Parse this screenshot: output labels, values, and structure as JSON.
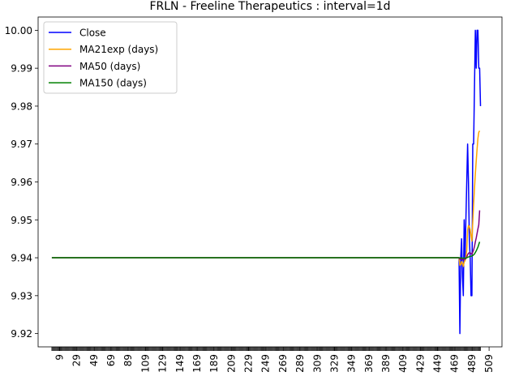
{
  "chart_data": {
    "type": "line",
    "title": "FRLN - Freeline Therapeutics : interval=1d",
    "xlabel": "",
    "ylabel": "",
    "xlim": [
      -16,
      524
    ],
    "ylim": [
      9.9165,
      10.0035
    ],
    "x_ticks": [
      9,
      29,
      49,
      69,
      89,
      109,
      129,
      149,
      169,
      189,
      209,
      229,
      249,
      269,
      289,
      309,
      329,
      349,
      369,
      389,
      409,
      429,
      449,
      469,
      489,
      509
    ],
    "y_ticks": [
      9.92,
      9.93,
      9.94,
      9.95,
      9.96,
      9.97,
      9.98,
      9.99,
      10.0
    ],
    "y_tick_labels": [
      "9.92",
      "9.93",
      "9.94",
      "9.95",
      "9.96",
      "9.97",
      "9.98",
      "9.99",
      "10.00"
    ],
    "legend_placement": "top-left",
    "grid": false,
    "series": [
      {
        "name": "Close",
        "color": "#0000ff",
        "points": [
          [
            0,
            9.94
          ],
          [
            474,
            9.94
          ],
          [
            475,
            9.92
          ],
          [
            476,
            9.94
          ],
          [
            477,
            9.945
          ],
          [
            478,
            9.935
          ],
          [
            479,
            9.93
          ],
          [
            480,
            9.95
          ],
          [
            481,
            9.94
          ],
          [
            482,
            9.95
          ],
          [
            483,
            9.96
          ],
          [
            484,
            9.97
          ],
          [
            485,
            9.96
          ],
          [
            486,
            9.945
          ],
          [
            487,
            9.94
          ],
          [
            488,
            9.93
          ],
          [
            489,
            9.93
          ],
          [
            490,
            9.97
          ],
          [
            491,
            9.97
          ],
          [
            492,
            9.985
          ],
          [
            493,
            10.0
          ],
          [
            494,
            9.99
          ],
          [
            495,
            10.0
          ],
          [
            496,
            10.0
          ],
          [
            497,
            9.99
          ],
          [
            498,
            9.99
          ],
          [
            499,
            9.98
          ]
        ]
      },
      {
        "name": "MA21exp (days)",
        "color": "#ffa500",
        "points": [
          [
            0,
            9.94
          ],
          [
            474,
            9.94
          ],
          [
            475,
            9.938
          ],
          [
            476,
            9.9382
          ],
          [
            477,
            9.939
          ],
          [
            478,
            9.9385
          ],
          [
            479,
            9.9377
          ],
          [
            480,
            9.9389
          ],
          [
            481,
            9.9392
          ],
          [
            482,
            9.9402
          ],
          [
            483,
            9.942
          ],
          [
            484,
            9.9473
          ],
          [
            485,
            9.9485
          ],
          [
            486,
            9.9482
          ],
          [
            487,
            9.9474
          ],
          [
            488,
            9.9458
          ],
          [
            489,
            9.9444
          ],
          [
            490,
            9.9495
          ],
          [
            491,
            9.9541
          ],
          [
            492,
            9.9583
          ],
          [
            493,
            9.9621
          ],
          [
            494,
            9.9655
          ],
          [
            495,
            9.9686
          ],
          [
            496,
            9.9715
          ],
          [
            497,
            9.9731
          ],
          [
            498,
            9.9735
          ]
        ]
      },
      {
        "name": "MA50 (days)",
        "color": "#800080",
        "points": [
          [
            0,
            9.94
          ],
          [
            474,
            9.94
          ],
          [
            475,
            9.9396
          ],
          [
            476,
            9.9396
          ],
          [
            477,
            9.9397
          ],
          [
            478,
            9.9396
          ],
          [
            479,
            9.9394
          ],
          [
            480,
            9.9396
          ],
          [
            481,
            9.9396
          ],
          [
            482,
            9.9398
          ],
          [
            483,
            9.9402
          ],
          [
            484,
            9.9408
          ],
          [
            485,
            9.9412
          ],
          [
            486,
            9.9413
          ],
          [
            487,
            9.9413
          ],
          [
            488,
            9.9411
          ],
          [
            489,
            9.9409
          ],
          [
            490,
            9.9415
          ],
          [
            491,
            9.9421
          ],
          [
            492,
            9.943
          ],
          [
            493,
            9.9442
          ],
          [
            494,
            9.9452
          ],
          [
            495,
            9.9464
          ],
          [
            496,
            9.9476
          ],
          [
            497,
            9.9487
          ],
          [
            498,
            9.9525
          ]
        ]
      },
      {
        "name": "MA150 (days)",
        "color": "#008000",
        "points": [
          [
            0,
            9.94
          ],
          [
            474,
            9.94
          ],
          [
            478,
            9.9399
          ],
          [
            482,
            9.9399
          ],
          [
            484,
            9.9401
          ],
          [
            486,
            9.9403
          ],
          [
            488,
            9.9404
          ],
          [
            490,
            9.9406
          ],
          [
            492,
            9.941
          ],
          [
            494,
            9.9418
          ],
          [
            496,
            9.9428
          ],
          [
            498,
            9.9442
          ]
        ]
      }
    ]
  }
}
